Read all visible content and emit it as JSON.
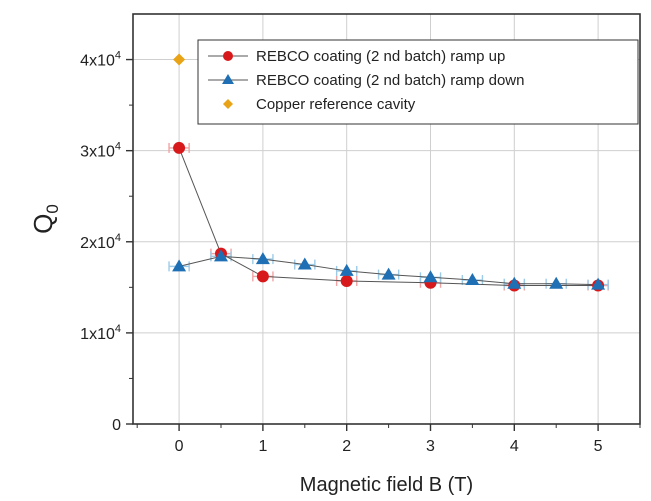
{
  "chart_data": {
    "type": "scatter",
    "title": "",
    "xlabel": "Magnetic field B (T)",
    "ylabel": "Q",
    "ylabel_sub": "0",
    "xlim": [
      -0.55,
      5.5
    ],
    "ylim": [
      0,
      45000
    ],
    "grid": true,
    "x_ticks": [
      0,
      1,
      2,
      3,
      4,
      5
    ],
    "y_ticks": [
      {
        "value": 0,
        "mantissa": "0",
        "exp": ""
      },
      {
        "value": 10000,
        "mantissa": "1x10",
        "exp": "4"
      },
      {
        "value": 20000,
        "mantissa": "2x10",
        "exp": "4"
      },
      {
        "value": 30000,
        "mantissa": "3x10",
        "exp": "4"
      },
      {
        "value": 40000,
        "mantissa": "4x10",
        "exp": "4"
      }
    ],
    "legend_position": "top-right",
    "series": [
      {
        "name": "REBCO coating (2 nd batch) ramp up",
        "marker": "circle",
        "color": "#d7191c",
        "errbar_color": "#f2a3a3",
        "line": true,
        "x": [
          0,
          0.5,
          1,
          2,
          3,
          4,
          5
        ],
        "y": [
          30300,
          18700,
          16200,
          15700,
          15500,
          15200,
          15200
        ],
        "xerr": 0.12,
        "yerr": 500
      },
      {
        "name": "REBCO coating (2 nd batch) ramp down",
        "marker": "triangle",
        "color": "#1f6fb4",
        "errbar_color": "#9ccbe8",
        "line": true,
        "x": [
          0,
          0.5,
          1,
          1.5,
          2,
          2.5,
          3,
          3.5,
          4,
          4.5,
          5
        ],
        "y": [
          17300,
          18400,
          18100,
          17500,
          16800,
          16400,
          16100,
          15800,
          15400,
          15400,
          15300
        ],
        "xerr": 0.12,
        "yerr": 300
      },
      {
        "name": "Copper reference cavity",
        "marker": "diamond",
        "color": "#e8a317",
        "errbar_color": "#e8a317",
        "line": false,
        "x": [
          0
        ],
        "y": [
          40000
        ],
        "xerr": 0,
        "yerr": 0
      }
    ]
  }
}
